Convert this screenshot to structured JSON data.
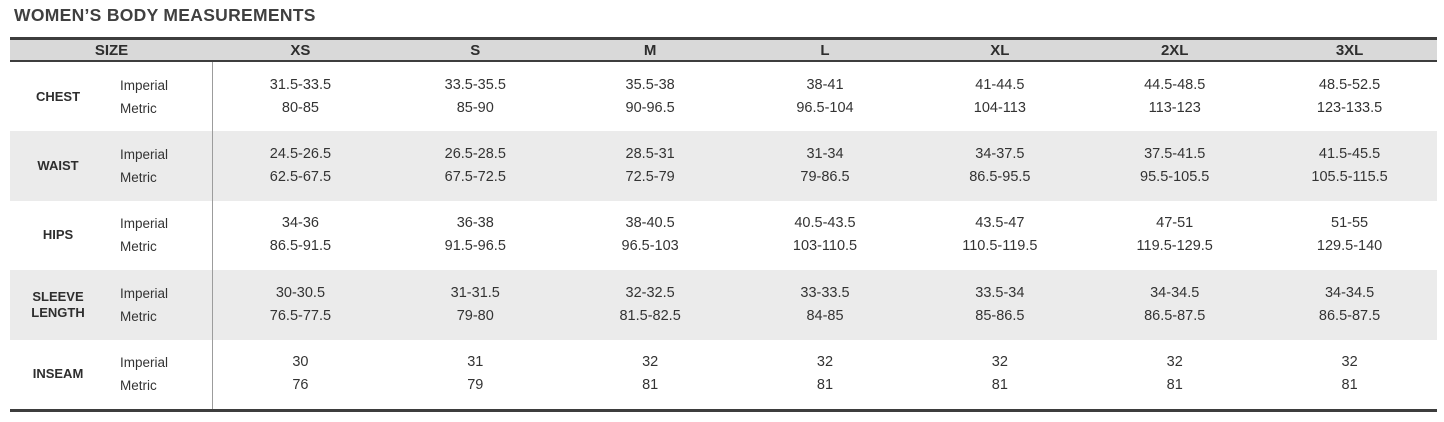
{
  "title": "WOMEN’S BODY MEASUREMENTS",
  "table": {
    "header": [
      "SIZE",
      "XS",
      "S",
      "M",
      "L",
      "XL",
      "2XL",
      "3XL"
    ],
    "unit_labels": [
      "Imperial",
      "Metric"
    ],
    "rows": [
      {
        "label": "CHEST",
        "imperial": [
          "31.5-33.5",
          "33.5-35.5",
          "35.5-38",
          "38-41",
          "41-44.5",
          "44.5-48.5",
          "48.5-52.5"
        ],
        "metric": [
          "80-85",
          "85-90",
          "90-96.5",
          "96.5-104",
          "104-113",
          "113-123",
          "123-133.5"
        ]
      },
      {
        "label": "WAIST",
        "imperial": [
          "24.5-26.5",
          "26.5-28.5",
          "28.5-31",
          "31-34",
          "34-37.5",
          "37.5-41.5",
          "41.5-45.5"
        ],
        "metric": [
          "62.5-67.5",
          "67.5-72.5",
          "72.5-79",
          "79-86.5",
          "86.5-95.5",
          "95.5-105.5",
          "105.5-115.5"
        ]
      },
      {
        "label": "HIPS",
        "imperial": [
          "34-36",
          "36-38",
          "38-40.5",
          "40.5-43.5",
          "43.5-47",
          "47-51",
          "51-55"
        ],
        "metric": [
          "86.5-91.5",
          "91.5-96.5",
          "96.5-103",
          "103-110.5",
          "110.5-119.5",
          "119.5-129.5",
          "129.5-140"
        ]
      },
      {
        "label": "SLEEVE LENGTH",
        "imperial": [
          "30-30.5",
          "31-31.5",
          "32-32.5",
          "33-33.5",
          "33.5-34",
          "34-34.5",
          "34-34.5"
        ],
        "metric": [
          "76.5-77.5",
          "79-80",
          "81.5-82.5",
          "84-85",
          "85-86.5",
          "86.5-87.5",
          "86.5-87.5"
        ]
      },
      {
        "label": "INSEAM",
        "imperial": [
          "30",
          "31",
          "32",
          "32",
          "32",
          "32",
          "32"
        ],
        "metric": [
          "76",
          "79",
          "81",
          "81",
          "81",
          "81",
          "81"
        ]
      }
    ]
  },
  "colors": {
    "header_bg": "#d9d9d9",
    "stripe_bg": "#ebebeb",
    "border_dark": "#3d3d3d",
    "divider": "#9c9c9c",
    "text": "#333333",
    "title_text": "#404040"
  }
}
